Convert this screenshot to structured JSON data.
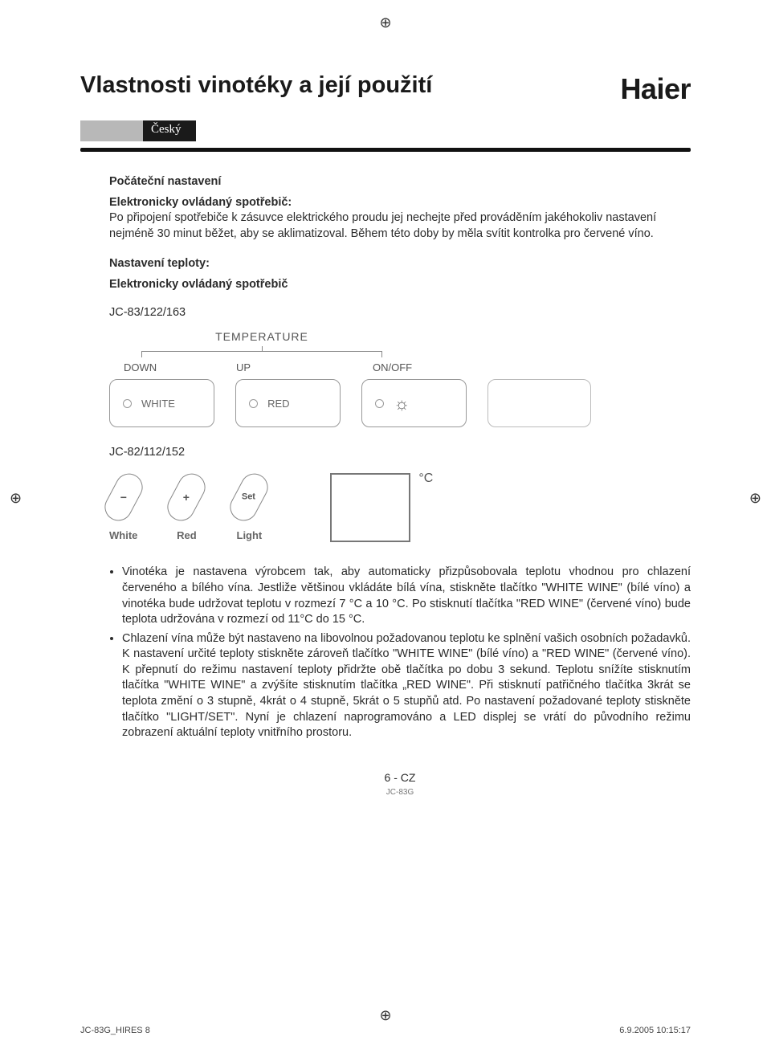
{
  "registration_mark": "⊕",
  "header": {
    "title": "Vlastnosti vinotéky a její použití",
    "brand": "Haier",
    "language": "Český"
  },
  "section1": {
    "heading": "Počáteční nastavení",
    "sub_heading": "Elektronicky ovládaný spotřebič:",
    "text": "Po připojení spotřebiče k zásuvce elektrického proudu jej nechejte před prováděním jakéhokoliv nastavení nejméně 30 minut běžet, aby se aklimatizoval. Během této doby by měla svítit kontrolka pro červené víno."
  },
  "section2": {
    "heading": "Nastavení teploty:",
    "sub_heading": "Elektronicky ovládaný spotřebič",
    "model1": "JC-83/122/163",
    "panel1": {
      "group_label": "TEMPERATURE",
      "labels": {
        "down": "DOWN",
        "up": "UP",
        "onoff": "ON/OFF"
      },
      "buttons": {
        "b1": "WHITE",
        "b2": "RED",
        "b3_icon": "lamp"
      }
    },
    "model2": "JC-82/112/152",
    "panel2": {
      "pill1": {
        "sym": "−",
        "label": "White"
      },
      "pill2": {
        "sym": "+",
        "label": "Red"
      },
      "pill3": {
        "sym": "Set",
        "label": "Light"
      },
      "unit": "°C"
    }
  },
  "bullets": [
    "Vinotéka je nastavena výrobcem tak, aby automaticky přizpůsobovala teplotu vhodnou pro chlazení červeného a bílého vína. Jestliže většinou vkládáte bílá vína, stiskněte tlačítko \"WHITE WINE\" (bílé víno) a vinotéka bude udržovat teplotu v rozmezí 7 °C a 10 °C. Po stisknutí tlačítka \"RED WINE\" (červené víno) bude teplota udržována v rozmezí od 11°C do 15 °C.",
    "Chlazení vína může být nastaveno na libovolnou požadovanou teplotu ke splnění vašich osobních požadavků. K nastavení určité teploty stiskněte zároveň tlačítko \"WHITE WINE\" (bílé víno) a \"RED WINE\" (červené víno). K přepnutí do režimu nastavení teploty přidržte obě tlačítka po dobu 3 sekund. Teplotu snížíte stisknutím tlačítka \"WHITE WINE\" a zvýšíte stisknutím tlačítka „RED WINE\". Při stisknutí patřičného tlačítka 3krát se teplota změní o 3 stupně, 4krát o 4 stupně, 5krát o 5 stupňů atd. Po nastavení požadované teploty stiskněte tlačítko \"LIGHT/SET\". Nyní je chlazení naprogramováno a LED displej se vrátí do původního režimu zobrazení aktuální teploty vnitřního prostoru."
  ],
  "footer": {
    "page": "6 - CZ",
    "doc": "JC-83G",
    "print_left": "JC-83G_HIRES   8",
    "print_right": "6.9.2005   10:15:17"
  }
}
